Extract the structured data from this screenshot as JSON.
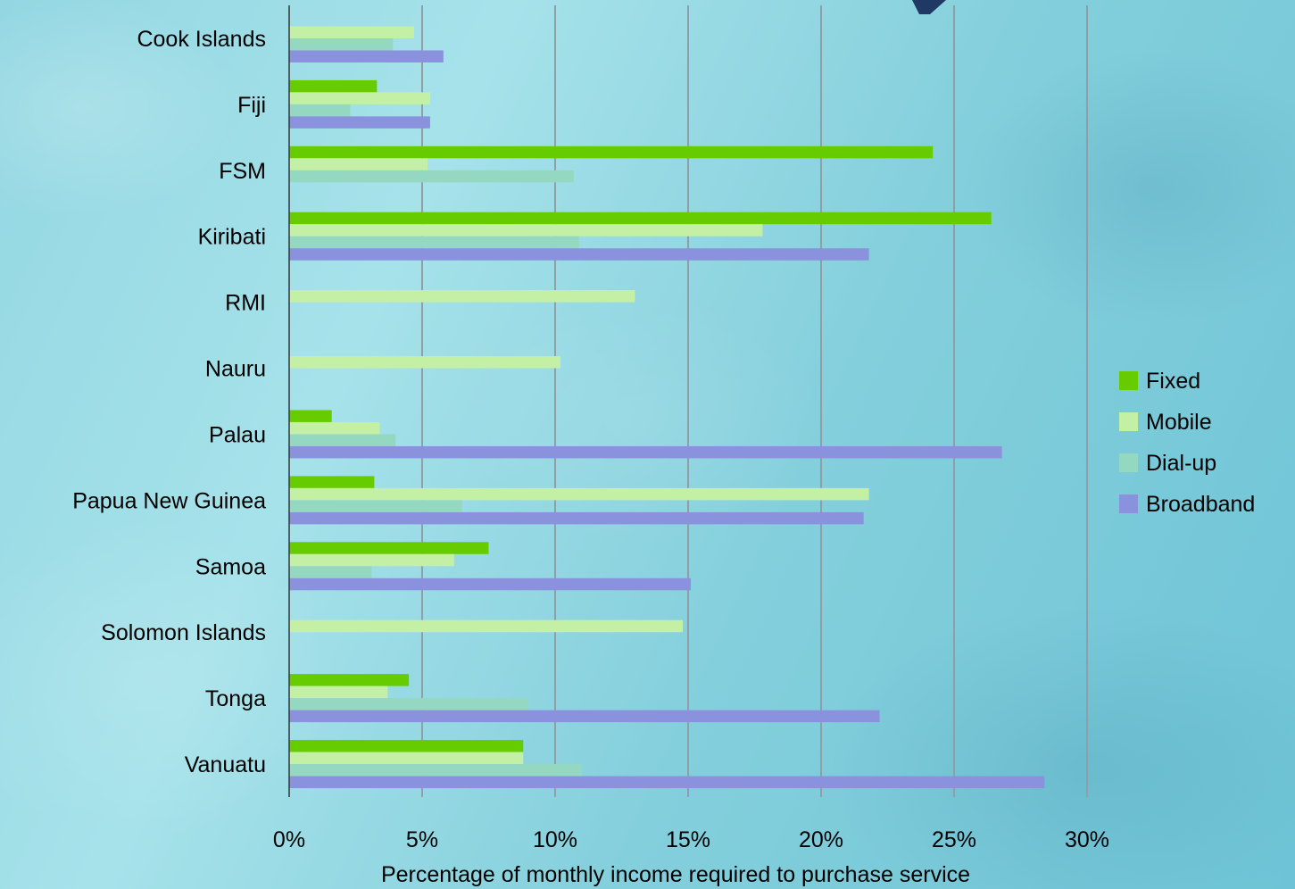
{
  "chart_data": {
    "type": "bar",
    "orientation": "horizontal",
    "title": "",
    "xlabel": "Percentage of monthly income required to purchase service",
    "ylabel": "",
    "xlim": [
      0,
      30
    ],
    "x_ticks": [
      "0%",
      "5%",
      "10%",
      "15%",
      "20%",
      "25%",
      "30%"
    ],
    "grid": "vertical",
    "legend_position": "right",
    "categories": [
      "Cook Islands",
      "Fiji",
      "FSM",
      "Kiribati",
      "RMI",
      "Nauru",
      "Palau",
      "Papua New Guinea",
      "Samoa",
      "Solomon Islands",
      "Tonga",
      "Vanuatu"
    ],
    "series": [
      {
        "name": "Fixed",
        "color": "#66cc00",
        "values": [
          null,
          3.3,
          24.2,
          26.4,
          null,
          null,
          1.6,
          3.2,
          7.5,
          null,
          4.5,
          8.8
        ]
      },
      {
        "name": "Mobile",
        "color": "#c4f0a6",
        "values": [
          4.7,
          5.3,
          5.2,
          17.8,
          13.0,
          10.2,
          3.4,
          21.8,
          6.2,
          14.8,
          3.7,
          8.8
        ]
      },
      {
        "name": "Dial-up",
        "color": "#95d8c2",
        "values": [
          3.9,
          2.3,
          10.7,
          10.9,
          null,
          null,
          4.0,
          6.5,
          3.1,
          null,
          9.0,
          11.0
        ]
      },
      {
        "name": "Broadband",
        "color": "#8a92dd",
        "values": [
          5.8,
          5.3,
          null,
          21.8,
          null,
          null,
          26.8,
          21.6,
          15.1,
          null,
          22.2,
          28.4
        ]
      }
    ]
  }
}
